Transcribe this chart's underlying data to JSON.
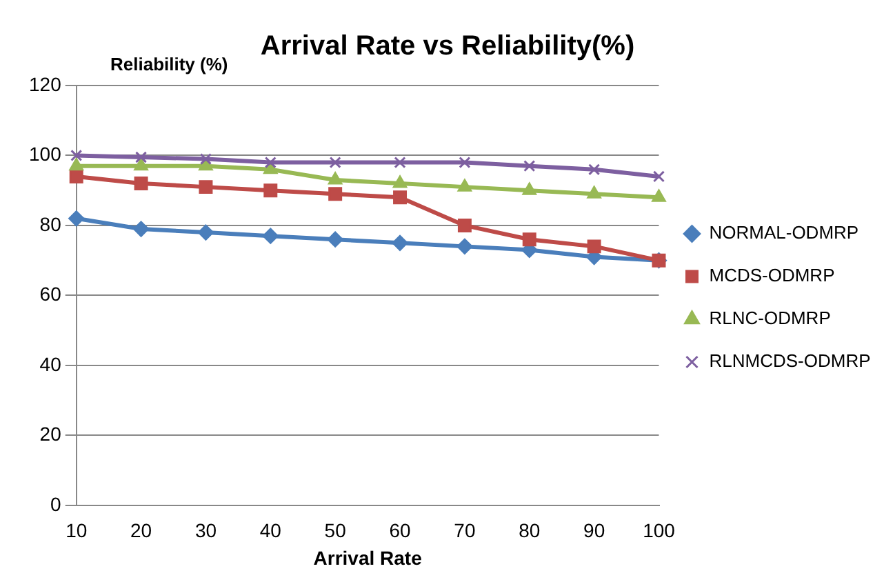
{
  "chart_data": {
    "type": "line",
    "title": "Arrival Rate vs Reliability(%)",
    "xlabel": "Arrival Rate",
    "ylabel": "Reliability (%)",
    "categories": [
      "10",
      "20",
      "30",
      "40",
      "50",
      "60",
      "70",
      "80",
      "90",
      "100"
    ],
    "ylim": [
      0,
      120
    ],
    "yticks": [
      0,
      20,
      40,
      60,
      80,
      100,
      120
    ],
    "grid": "y",
    "legend": "right",
    "series": [
      {
        "name": "NORMAL-ODMRP",
        "color": "#4a7ebb",
        "marker": "diamond",
        "values": [
          82,
          79,
          78,
          77,
          76,
          75,
          74,
          73,
          71,
          70
        ]
      },
      {
        "name": "MCDS-ODMRP",
        "color": "#be4b48",
        "marker": "square",
        "values": [
          94,
          92,
          91,
          90,
          89,
          88,
          80,
          76,
          74,
          70
        ]
      },
      {
        "name": "RLNC-ODMRP",
        "color": "#98b954",
        "marker": "triangle",
        "values": [
          97,
          97,
          97,
          96,
          93,
          92,
          91,
          90,
          89,
          88
        ]
      },
      {
        "name": "RLNMCDS-ODMRP",
        "color": "#7d5fa0",
        "marker": "cross",
        "values": [
          100,
          99.5,
          99,
          98,
          98,
          98,
          98,
          97,
          96,
          94
        ]
      }
    ]
  }
}
